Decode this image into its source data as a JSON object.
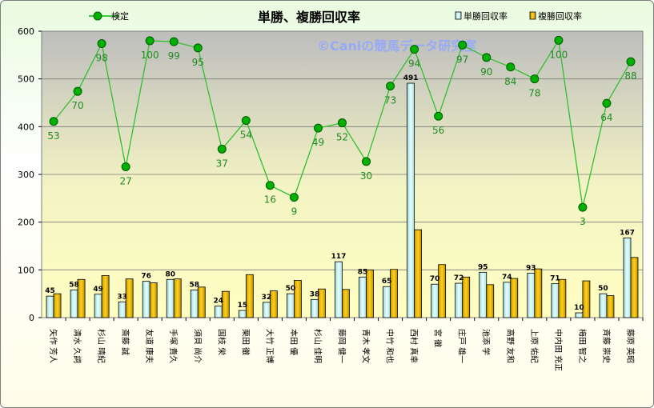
{
  "chart_data": {
    "type": "bar",
    "title": "単勝、複勝回収率",
    "watermark": "©Caniの競馬データ研究室",
    "ylim": [
      0,
      600
    ],
    "yticks": [
      0,
      100,
      200,
      300,
      400,
      500,
      600
    ],
    "categories": [
      "矢作 芳人",
      "清水 久詞",
      "杉山 晴紀",
      "斎藤 誠",
      "友道 康夫",
      "手塚 貴久",
      "須貝 尚介",
      "国枝 栄",
      "栗田 徹",
      "大竹 正博",
      "本田 優",
      "杉山 佳明",
      "藤岡 健一",
      "青木 孝文",
      "中竹 和也",
      "西村 真幸",
      "宮 徹",
      "庄戸 雄一",
      "池添 学",
      "高野 友和",
      "上原 佑紀",
      "中内田 充正",
      "梅田 智之",
      "斉藤 崇史",
      "藤原 英昭"
    ],
    "series": [
      {
        "name": "単勝回収率",
        "type": "bar",
        "color": "#cdf0f0",
        "values": [
          45,
          58,
          49,
          33,
          76,
          80,
          58,
          24,
          15,
          32,
          50,
          38,
          117,
          85,
          65,
          491,
          70,
          72,
          95,
          74,
          93,
          71,
          10,
          50,
          167
        ]
      },
      {
        "name": "複勝回収率",
        "type": "bar",
        "color": "#e8b400",
        "values": [
          50,
          80,
          88,
          81,
          73,
          81,
          64,
          55,
          90,
          56,
          78,
          60,
          59,
          100,
          101,
          184,
          111,
          85,
          69,
          82,
          102,
          80,
          77,
          46,
          126
        ]
      },
      {
        "name": "検定",
        "type": "line",
        "color": "#00c000",
        "values": [
          411,
          474,
          574,
          316,
          580,
          578,
          565,
          353,
          413,
          277,
          252,
          397,
          408,
          327,
          485,
          562,
          422,
          571,
          545,
          525,
          500,
          581,
          231,
          449,
          536
        ],
        "labels": [
          53,
          70,
          98,
          27,
          100,
          99,
          95,
          37,
          54,
          16,
          9,
          49,
          52,
          30,
          73,
          94,
          56,
          97,
          90,
          84,
          78,
          100,
          3,
          64,
          88
        ]
      }
    ]
  }
}
